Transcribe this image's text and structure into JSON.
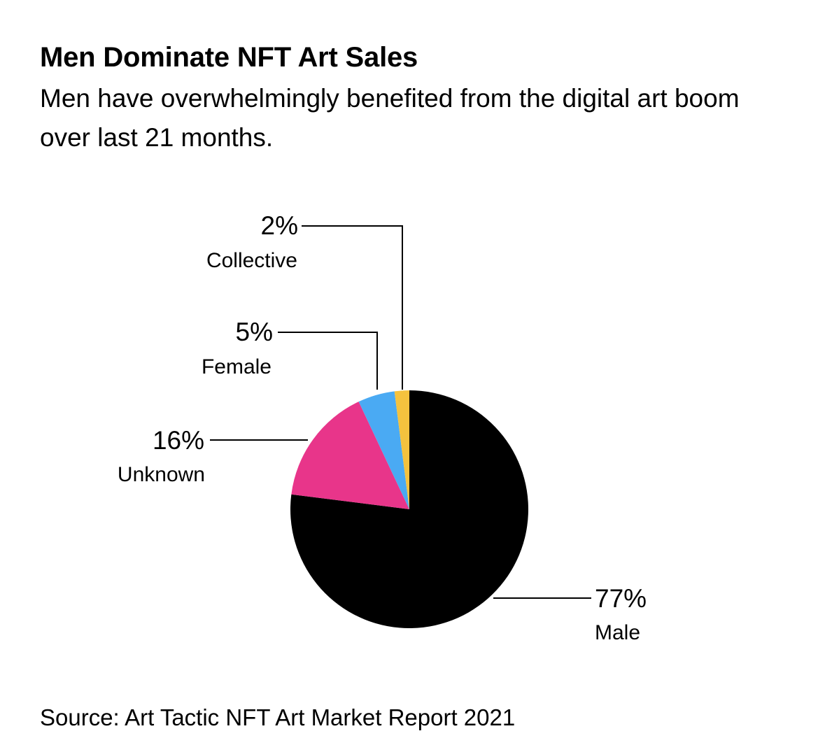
{
  "header": {
    "title": "Men Dominate NFT Art Sales",
    "subtitle": "Men have overwhelmingly benefited from the digital art boom over last 21 months."
  },
  "footer": {
    "source": "Source: Art Tactic NFT Art Market Report 2021"
  },
  "chart_data": {
    "type": "pie",
    "title": "Men Dominate NFT Art Sales",
    "start_angle_deg": 0,
    "direction": "clockwise",
    "slices": [
      {
        "name": "Male",
        "value": 77,
        "label": "77%",
        "color": "#000000"
      },
      {
        "name": "Unknown",
        "value": 16,
        "label": "16%",
        "color": "#e8358a"
      },
      {
        "name": "Female",
        "value": 5,
        "label": "5%",
        "color": "#4aaaf3"
      },
      {
        "name": "Collective",
        "value": 2,
        "label": "2%",
        "color": "#f4c23e"
      }
    ]
  }
}
